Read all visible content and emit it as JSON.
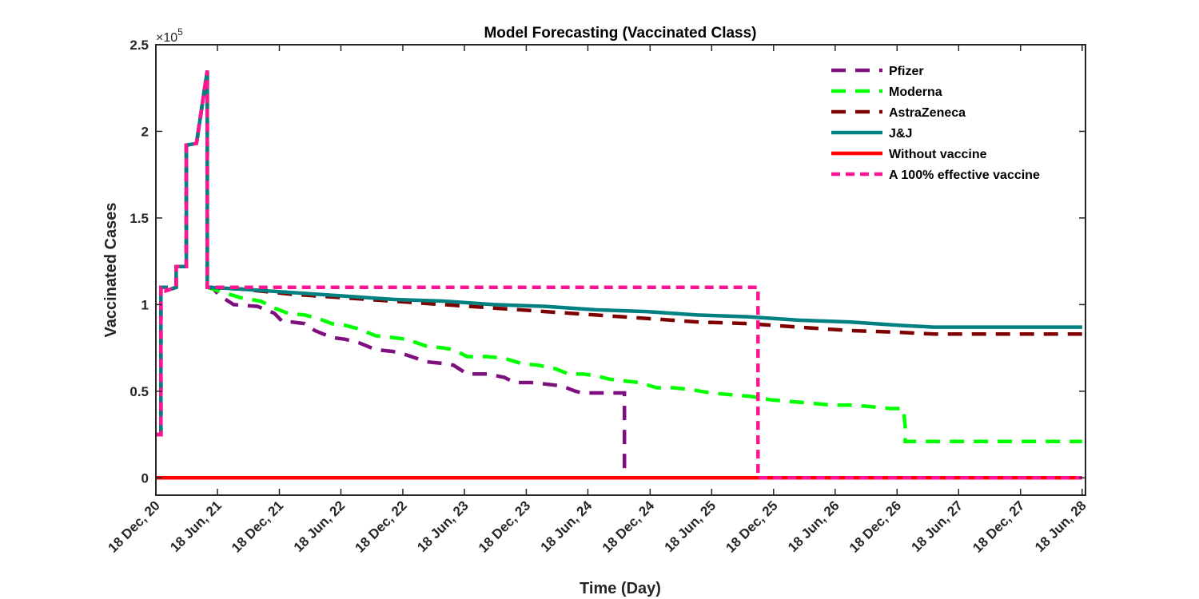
{
  "chart_data": {
    "type": "line",
    "title": "Model Forecasting (Vaccinated Class)",
    "xlabel": "Time (Day)",
    "ylabel": "Vaccinated Cases",
    "y_exponent_label": "×10",
    "y_exponent_power": "5",
    "xlim": [
      0,
      2748
    ],
    "ylim": [
      -0.1,
      2.5
    ],
    "y_ticks": [
      0,
      0.5,
      1,
      1.5,
      2,
      2.5
    ],
    "y_tick_labels": [
      "0",
      "0.5",
      "1",
      "1.5",
      "2",
      "2.5"
    ],
    "x_ticks": [
      0,
      182,
      365,
      547,
      730,
      912,
      1095,
      1277,
      1461,
      1643,
      1826,
      2008,
      2191,
      2373,
      2556,
      2738
    ],
    "x_tick_labels": [
      "18 Dec, 20",
      "18 Jun, 21",
      "18 Dec, 21",
      "18 Jun, 22",
      "18 Dec, 22",
      "18 Jun, 23",
      "18 Dec, 23",
      "18 Jun, 24",
      "18 Dec, 24",
      "18 Jun, 25",
      "18 Dec, 25",
      "18 Jun, 26",
      "18 Dec, 26",
      "18 Jun, 27",
      "18 Dec, 27",
      "18 Jun, 28"
    ],
    "grid": false,
    "legend_position": "top-right",
    "series": [
      {
        "name": "Pfizer",
        "color": "#7E0F7E",
        "style": "dashed",
        "x": [
          0,
          15,
          15,
          30,
          30,
          60,
          60,
          90,
          90,
          120,
          120,
          152,
          152,
          165,
          190,
          230,
          300,
          350,
          375,
          400,
          440,
          470,
          520,
          560,
          600,
          650,
          700,
          740,
          800,
          850,
          880,
          920,
          980,
          1030,
          1060,
          1110,
          1160,
          1200,
          1240,
          1260,
          1300,
          1340,
          1385,
          1385
        ],
        "y": [
          0.25,
          0.25,
          1.1,
          1.1,
          1.08,
          1.1,
          1.22,
          1.22,
          1.92,
          1.93,
          1.93,
          2.35,
          1.1,
          1.1,
          1.05,
          1.0,
          0.99,
          0.95,
          0.9,
          0.9,
          0.89,
          0.85,
          0.81,
          0.8,
          0.78,
          0.74,
          0.73,
          0.71,
          0.67,
          0.66,
          0.65,
          0.6,
          0.6,
          0.58,
          0.55,
          0.55,
          0.54,
          0.53,
          0.5,
          0.49,
          0.49,
          0.49,
          0.49,
          0.02
        ]
      },
      {
        "name": "Moderna",
        "color": "#00FF00",
        "style": "dashed",
        "x": [
          0,
          15,
          15,
          30,
          30,
          60,
          60,
          90,
          90,
          120,
          120,
          152,
          152,
          200,
          250,
          310,
          350,
          390,
          440,
          480,
          520,
          560,
          600,
          650,
          700,
          740,
          800,
          850,
          880,
          920,
          980,
          1030,
          1080,
          1130,
          1180,
          1220,
          1260,
          1300,
          1340,
          1380,
          1430,
          1480,
          1530,
          1580,
          1640,
          1700,
          1760,
          1820,
          1880,
          1940,
          2000,
          2060,
          2120,
          2170,
          2210,
          2215,
          2215,
          2280,
          2400,
          2550,
          2738
        ],
        "y": [
          0.25,
          0.25,
          1.1,
          1.1,
          1.08,
          1.1,
          1.22,
          1.22,
          1.92,
          1.93,
          1.93,
          2.35,
          1.1,
          1.07,
          1.04,
          1.02,
          0.98,
          0.95,
          0.94,
          0.92,
          0.89,
          0.88,
          0.86,
          0.82,
          0.81,
          0.8,
          0.76,
          0.75,
          0.74,
          0.7,
          0.7,
          0.69,
          0.66,
          0.65,
          0.63,
          0.6,
          0.6,
          0.59,
          0.57,
          0.56,
          0.55,
          0.52,
          0.52,
          0.51,
          0.49,
          0.48,
          0.47,
          0.45,
          0.44,
          0.43,
          0.42,
          0.42,
          0.41,
          0.4,
          0.4,
          0.3,
          0.21,
          0.21,
          0.21,
          0.21,
          0.21
        ]
      },
      {
        "name": "AstraZeneca",
        "color": "#7F0000",
        "style": "dashed",
        "x": [
          0,
          15,
          15,
          30,
          30,
          60,
          60,
          90,
          90,
          120,
          120,
          152,
          152,
          250,
          400,
          550,
          700,
          850,
          1000,
          1150,
          1300,
          1450,
          1600,
          1750,
          1900,
          2050,
          2200,
          2300,
          2500,
          2738
        ],
        "y": [
          0.25,
          0.25,
          1.1,
          1.1,
          1.08,
          1.1,
          1.22,
          1.22,
          1.92,
          1.93,
          1.93,
          2.35,
          1.1,
          1.09,
          1.06,
          1.04,
          1.02,
          1.0,
          0.98,
          0.96,
          0.94,
          0.92,
          0.9,
          0.89,
          0.87,
          0.85,
          0.84,
          0.83,
          0.83,
          0.83
        ]
      },
      {
        "name": "J&J",
        "color": "#008080",
        "style": "solid",
        "x": [
          0,
          15,
          15,
          30,
          30,
          60,
          60,
          90,
          90,
          120,
          120,
          152,
          152,
          250,
          400,
          550,
          700,
          850,
          1000,
          1150,
          1300,
          1450,
          1600,
          1750,
          1900,
          2050,
          2200,
          2300,
          2500,
          2738
        ],
        "y": [
          0.25,
          0.25,
          1.1,
          1.1,
          1.08,
          1.1,
          1.22,
          1.22,
          1.92,
          1.93,
          1.93,
          2.35,
          1.1,
          1.09,
          1.07,
          1.05,
          1.03,
          1.02,
          1.0,
          0.99,
          0.97,
          0.96,
          0.94,
          0.93,
          0.91,
          0.9,
          0.88,
          0.87,
          0.87,
          0.87
        ]
      },
      {
        "name": "Without vaccine",
        "color": "#FF0000",
        "style": "solid",
        "x": [
          0,
          2738
        ],
        "y": [
          0,
          0
        ]
      },
      {
        "name": "A 100% effective vaccine",
        "color": "#FF1493",
        "style": "dashed",
        "x": [
          0,
          15,
          15,
          30,
          30,
          60,
          60,
          90,
          90,
          120,
          120,
          152,
          152,
          1780,
          1780,
          2738
        ],
        "y": [
          0.25,
          0.25,
          1.1,
          1.1,
          1.08,
          1.1,
          1.22,
          1.22,
          1.92,
          1.93,
          1.93,
          2.35,
          1.1,
          1.1,
          0.0,
          0.0
        ]
      }
    ]
  }
}
